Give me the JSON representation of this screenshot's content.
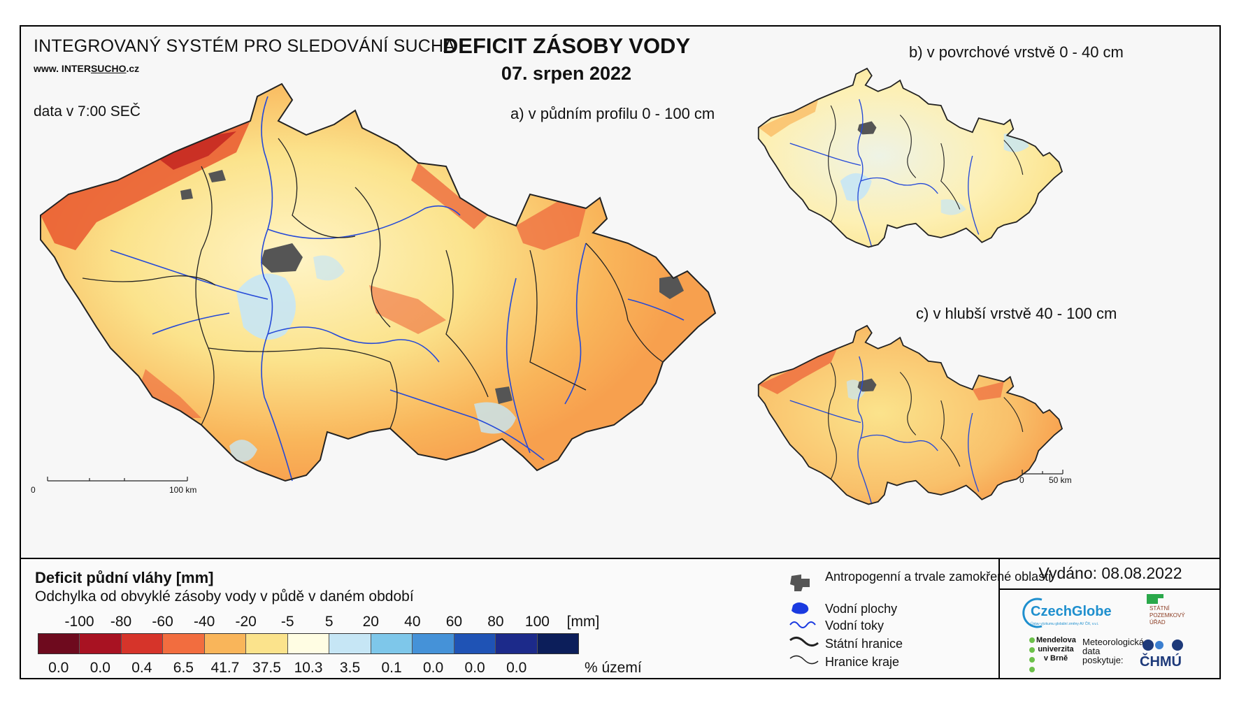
{
  "header": {
    "system_name": "INTEGROVANÝ SYSTÉM PRO SLEDOVÁNÍ SUCHA",
    "website_prefix": "www. INTER",
    "website_mid": "SUCHO",
    "website_suffix": ".cz",
    "data_time": "data v 7:00 SEČ",
    "title": "DEFICIT ZÁSOBY VODY",
    "date": "07. srpen 2022"
  },
  "maps": {
    "main_subtitle": "a) v půdním profilu 0 - 100 cm",
    "surface_subtitle": "b) v povrchové vrstvě 0 - 40 cm",
    "deep_subtitle": "c) v hlubší vrstvě 40 - 100 cm",
    "main_scale": {
      "start": "0",
      "end": "100 km"
    },
    "small_scale": {
      "start": "0",
      "end": "50 km"
    }
  },
  "legend": {
    "title": "Deficit půdní vláhy  [mm]",
    "subtitle": "Odchylka od obvyklé zásoby vody v půdě v daném období",
    "tick_labels": [
      "-100",
      "-80",
      "-60",
      "-40",
      "-20",
      "-5",
      "5",
      "20",
      "40",
      "60",
      "80",
      "100"
    ],
    "unit": "[mm]",
    "colors": [
      "#6e0a1e",
      "#a81222",
      "#d6342a",
      "#f26d3f",
      "#f9b55a",
      "#fbe38c",
      "#fffde3",
      "#c6e6f5",
      "#7ec7ea",
      "#4592d8",
      "#1f53b5",
      "#1c2a8a",
      "#0c1e5a"
    ],
    "percentages": [
      "0.0",
      "0.0",
      "0.4",
      "6.5",
      "41.7",
      "37.5",
      "10.3",
      "3.5",
      "0.1",
      "0.0",
      "0.0",
      "0.0"
    ],
    "percent_unit": "% území"
  },
  "symbols": {
    "anthropogenic": "Antropogenní a trvale zamokřené oblasti",
    "water_bodies": "Vodní plochy",
    "streams": "Vodní toky",
    "state_border": "Státní hranice",
    "region_border": "Hranice kraje"
  },
  "issued": "Vydáno: 08.08.2022",
  "logos": {
    "czechglobe": "CzechGlobe",
    "czechglobe_sub": "Ústav výzkumu globální změny AV ČR, v.v.i.",
    "spu": "STÁTNÍ POZEMKOVÝ ÚŘAD",
    "mendel": "Mendelova univerzita v Brně",
    "data_provided": "Meteorologická data poskytuje:",
    "chmu": "ČHMÚ"
  }
}
